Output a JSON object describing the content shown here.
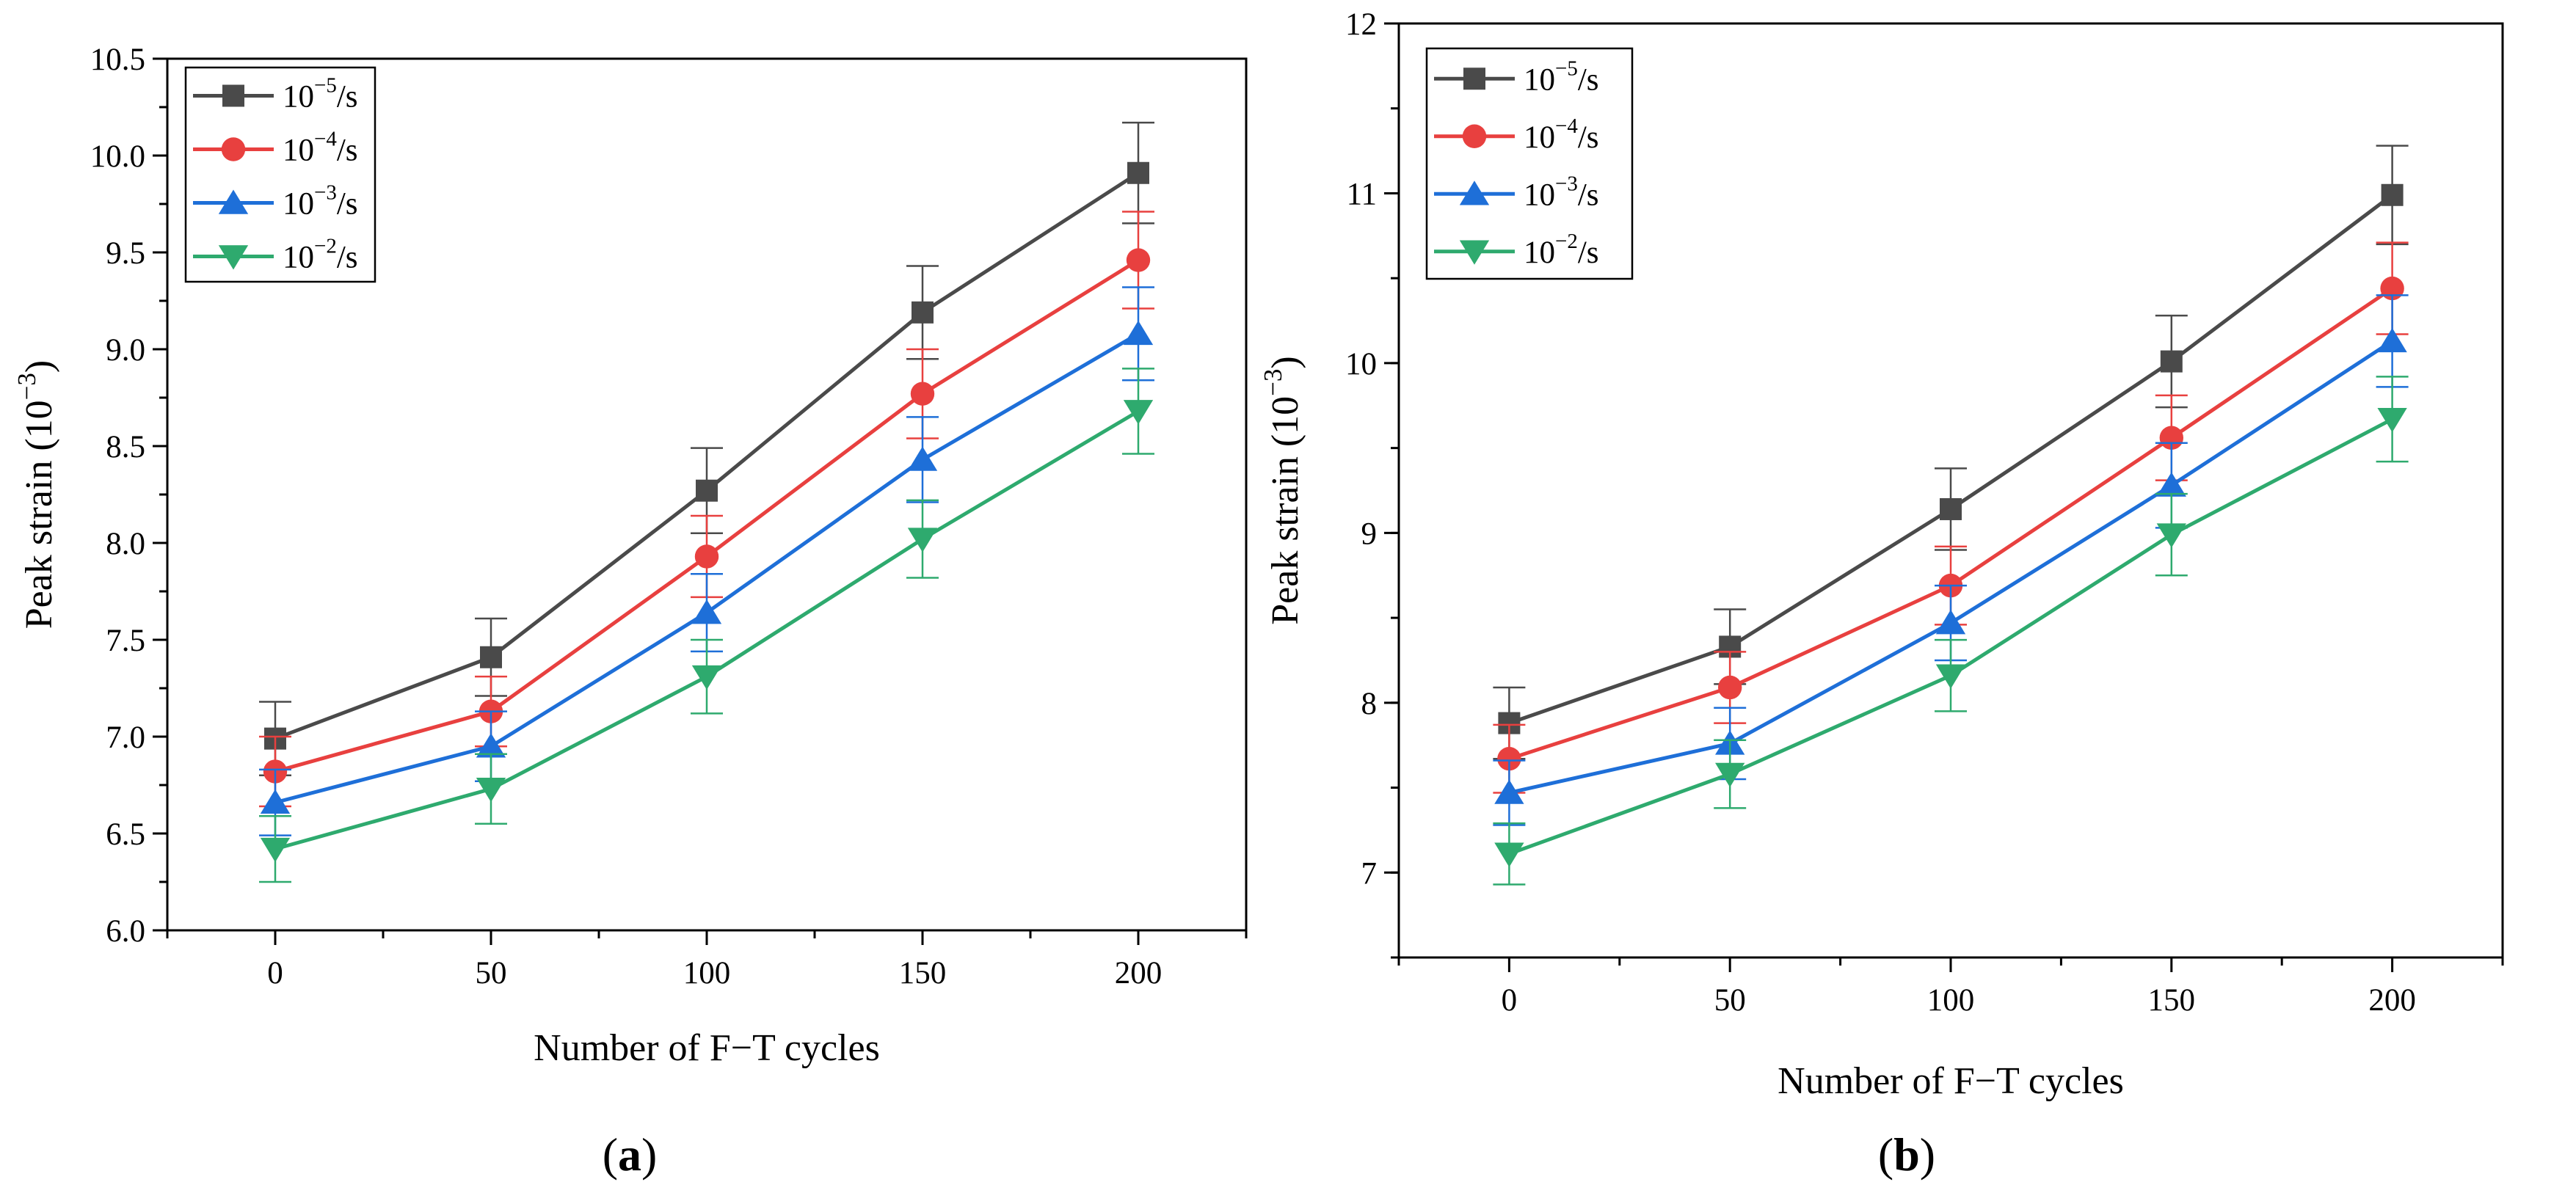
{
  "chart_data": [
    {
      "type": "line",
      "panel_label": "a",
      "xlabel": "Number of F−T cycles",
      "ylabel_base": "Peak strain (10",
      "ylabel_exp": "−3",
      "ylabel_close": ")",
      "x": [
        0,
        50,
        100,
        150,
        200
      ],
      "x_ticks": [
        "0",
        "50",
        "100",
        "150",
        "200"
      ],
      "xlim": [
        -25,
        225
      ],
      "ylim": [
        6.0,
        10.5
      ],
      "y_ticks": [
        "6.0",
        "6.5",
        "7.0",
        "7.5",
        "8.0",
        "8.5",
        "9.0",
        "9.5",
        "10.0",
        "10.5"
      ],
      "series": [
        {
          "name": "10⁻⁵/s",
          "base": "10",
          "exp": "−5",
          "unit": "/s",
          "color": "#4a4a4a",
          "marker": "square",
          "values": [
            6.99,
            7.41,
            8.27,
            9.19,
            9.91
          ],
          "errors": [
            0.19,
            0.2,
            0.22,
            0.24,
            0.26
          ]
        },
        {
          "name": "10⁻⁴/s",
          "base": "10",
          "exp": "−4",
          "unit": "/s",
          "color": "#e8403f",
          "marker": "circle",
          "values": [
            6.82,
            7.13,
            7.93,
            8.77,
            9.46
          ],
          "errors": [
            0.18,
            0.18,
            0.21,
            0.23,
            0.25
          ]
        },
        {
          "name": "10⁻³/s",
          "base": "10",
          "exp": "−3",
          "unit": "/s",
          "color": "#1e6fd8",
          "marker": "triangle-up",
          "values": [
            6.66,
            6.95,
            7.64,
            8.43,
            9.08
          ],
          "errors": [
            0.17,
            0.18,
            0.2,
            0.22,
            0.24
          ]
        },
        {
          "name": "10⁻²/s",
          "base": "10",
          "exp": "−2",
          "unit": "/s",
          "color": "#2eaa6e",
          "marker": "triangle-down",
          "values": [
            6.42,
            6.73,
            7.31,
            8.02,
            8.68
          ],
          "errors": [
            0.17,
            0.18,
            0.19,
            0.2,
            0.22
          ]
        }
      ]
    },
    {
      "type": "line",
      "panel_label": "b",
      "xlabel": "Number of F−T cycles",
      "ylabel_base": "Peak strain (10",
      "ylabel_exp": "−3",
      "ylabel_close": ")",
      "x": [
        0,
        50,
        100,
        150,
        200
      ],
      "x_ticks": [
        "0",
        "50",
        "100",
        "150",
        "200"
      ],
      "xlim": [
        -25,
        225
      ],
      "ylim": [
        6.5,
        12.0
      ],
      "y_ticks": [
        "7",
        "8",
        "9",
        "10",
        "11",
        "12"
      ],
      "series": [
        {
          "name": "10⁻⁵/s",
          "base": "10",
          "exp": "−5",
          "unit": "/s",
          "color": "#4a4a4a",
          "marker": "square",
          "values": [
            7.88,
            8.33,
            9.14,
            10.01,
            10.99
          ],
          "errors": [
            0.21,
            0.22,
            0.24,
            0.27,
            0.29
          ]
        },
        {
          "name": "10⁻⁴/s",
          "base": "10",
          "exp": "−4",
          "unit": "/s",
          "color": "#e8403f",
          "marker": "circle",
          "values": [
            7.67,
            8.09,
            8.69,
            9.56,
            10.44
          ],
          "errors": [
            0.2,
            0.21,
            0.23,
            0.25,
            0.27
          ]
        },
        {
          "name": "10⁻³/s",
          "base": "10",
          "exp": "−3",
          "unit": "/s",
          "color": "#1e6fd8",
          "marker": "triangle-up",
          "values": [
            7.47,
            7.76,
            8.47,
            9.28,
            10.13
          ],
          "errors": [
            0.19,
            0.21,
            0.22,
            0.25,
            0.27
          ]
        },
        {
          "name": "10⁻²/s",
          "base": "10",
          "exp": "−2",
          "unit": "/s",
          "color": "#2eaa6e",
          "marker": "triangle-down",
          "values": [
            7.11,
            7.58,
            8.16,
            8.99,
            9.67
          ],
          "errors": [
            0.18,
            0.2,
            0.21,
            0.24,
            0.25
          ]
        }
      ]
    }
  ]
}
